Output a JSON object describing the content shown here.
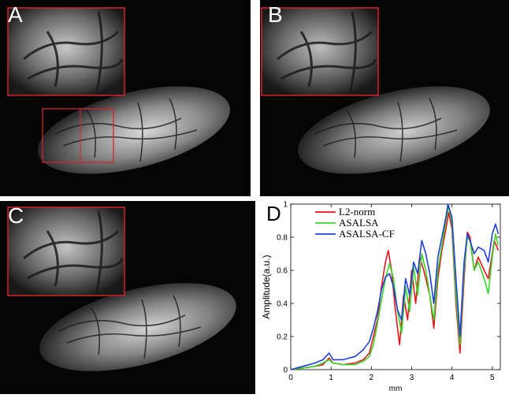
{
  "panels": [
    {
      "letter": "A",
      "has_roi_box": true
    },
    {
      "letter": "B",
      "has_roi_box": false
    },
    {
      "letter": "C",
      "has_roi_box": false
    }
  ],
  "chart_panel": {
    "letter": "D"
  },
  "chart_data": {
    "type": "line",
    "xlabel": "mm",
    "ylabel": "Amplitude(a.u.)",
    "xlim": [
      0,
      5.2
    ],
    "ylim": [
      0,
      1
    ],
    "xticks": [
      0,
      1,
      2,
      3,
      4,
      5
    ],
    "yticks": [
      0,
      0.2,
      0.4,
      0.6,
      0.8,
      1
    ],
    "xtick_labels": [
      "0",
      "1",
      "2",
      "3",
      "4",
      "5"
    ],
    "ytick_labels": [
      "0",
      "0.2",
      "0.4",
      "0.6",
      "0.8",
      "1"
    ],
    "legend_position": "top-left",
    "grid": false,
    "series": [
      {
        "name": "L2-norm",
        "color": "#e8141b",
        "points": [
          [
            0,
            0
          ],
          [
            0.3,
            0.01
          ],
          [
            0.6,
            0.02
          ],
          [
            0.8,
            0.03
          ],
          [
            0.95,
            0.07
          ],
          [
            1.05,
            0.04
          ],
          [
            1.3,
            0.03
          ],
          [
            1.6,
            0.04
          ],
          [
            1.8,
            0.06
          ],
          [
            1.95,
            0.1
          ],
          [
            2.05,
            0.2
          ],
          [
            2.15,
            0.3
          ],
          [
            2.25,
            0.5
          ],
          [
            2.35,
            0.65
          ],
          [
            2.42,
            0.72
          ],
          [
            2.5,
            0.6
          ],
          [
            2.6,
            0.35
          ],
          [
            2.7,
            0.15
          ],
          [
            2.8,
            0.45
          ],
          [
            2.9,
            0.3
          ],
          [
            3.0,
            0.6
          ],
          [
            3.1,
            0.4
          ],
          [
            3.2,
            0.68
          ],
          [
            3.3,
            0.6
          ],
          [
            3.45,
            0.45
          ],
          [
            3.55,
            0.25
          ],
          [
            3.65,
            0.55
          ],
          [
            3.75,
            0.72
          ],
          [
            3.85,
            0.85
          ],
          [
            3.92,
            0.95
          ],
          [
            4.0,
            0.85
          ],
          [
            4.1,
            0.4
          ],
          [
            4.2,
            0.1
          ],
          [
            4.3,
            0.55
          ],
          [
            4.38,
            0.83
          ],
          [
            4.45,
            0.8
          ],
          [
            4.55,
            0.6
          ],
          [
            4.65,
            0.68
          ],
          [
            4.8,
            0.6
          ],
          [
            4.9,
            0.55
          ],
          [
            5.0,
            0.7
          ],
          [
            5.05,
            0.78
          ],
          [
            5.15,
            0.72
          ]
        ]
      },
      {
        "name": "ASALSA",
        "color": "#3ad62c",
        "points": [
          [
            0,
            0
          ],
          [
            0.3,
            0.01
          ],
          [
            0.6,
            0.02
          ],
          [
            0.8,
            0.04
          ],
          [
            0.95,
            0.06
          ],
          [
            1.05,
            0.04
          ],
          [
            1.3,
            0.03
          ],
          [
            1.6,
            0.03
          ],
          [
            1.8,
            0.05
          ],
          [
            1.95,
            0.08
          ],
          [
            2.05,
            0.15
          ],
          [
            2.15,
            0.28
          ],
          [
            2.25,
            0.42
          ],
          [
            2.35,
            0.55
          ],
          [
            2.45,
            0.64
          ],
          [
            2.55,
            0.55
          ],
          [
            2.65,
            0.35
          ],
          [
            2.75,
            0.22
          ],
          [
            2.85,
            0.5
          ],
          [
            2.95,
            0.35
          ],
          [
            3.05,
            0.62
          ],
          [
            3.15,
            0.45
          ],
          [
            3.25,
            0.7
          ],
          [
            3.35,
            0.6
          ],
          [
            3.45,
            0.45
          ],
          [
            3.55,
            0.3
          ],
          [
            3.65,
            0.6
          ],
          [
            3.75,
            0.75
          ],
          [
            3.85,
            0.9
          ],
          [
            3.92,
            0.99
          ],
          [
            4.0,
            0.88
          ],
          [
            4.1,
            0.45
          ],
          [
            4.2,
            0.15
          ],
          [
            4.3,
            0.6
          ],
          [
            4.38,
            0.8
          ],
          [
            4.45,
            0.78
          ],
          [
            4.55,
            0.6
          ],
          [
            4.65,
            0.65
          ],
          [
            4.8,
            0.55
          ],
          [
            4.9,
            0.46
          ],
          [
            5.0,
            0.68
          ],
          [
            5.08,
            0.82
          ],
          [
            5.15,
            0.75
          ]
        ]
      },
      {
        "name": "ASALSA-CF",
        "color": "#1f3fd9",
        "points": [
          [
            0,
            0
          ],
          [
            0.3,
            0.02
          ],
          [
            0.6,
            0.04
          ],
          [
            0.8,
            0.06
          ],
          [
            0.95,
            0.1
          ],
          [
            1.05,
            0.06
          ],
          [
            1.3,
            0.06
          ],
          [
            1.6,
            0.08
          ],
          [
            1.8,
            0.12
          ],
          [
            1.95,
            0.17
          ],
          [
            2.05,
            0.25
          ],
          [
            2.15,
            0.35
          ],
          [
            2.25,
            0.48
          ],
          [
            2.35,
            0.56
          ],
          [
            2.45,
            0.58
          ],
          [
            2.55,
            0.5
          ],
          [
            2.65,
            0.36
          ],
          [
            2.75,
            0.3
          ],
          [
            2.85,
            0.55
          ],
          [
            2.95,
            0.45
          ],
          [
            3.05,
            0.65
          ],
          [
            3.15,
            0.58
          ],
          [
            3.25,
            0.78
          ],
          [
            3.35,
            0.7
          ],
          [
            3.45,
            0.58
          ],
          [
            3.55,
            0.4
          ],
          [
            3.65,
            0.68
          ],
          [
            3.75,
            0.8
          ],
          [
            3.85,
            0.92
          ],
          [
            3.9,
            1.0
          ],
          [
            4.0,
            0.92
          ],
          [
            4.1,
            0.55
          ],
          [
            4.2,
            0.2
          ],
          [
            4.3,
            0.65
          ],
          [
            4.38,
            0.82
          ],
          [
            4.45,
            0.78
          ],
          [
            4.55,
            0.7
          ],
          [
            4.65,
            0.74
          ],
          [
            4.8,
            0.72
          ],
          [
            4.9,
            0.65
          ],
          [
            5.0,
            0.82
          ],
          [
            5.08,
            0.88
          ],
          [
            5.15,
            0.82
          ]
        ]
      }
    ]
  }
}
